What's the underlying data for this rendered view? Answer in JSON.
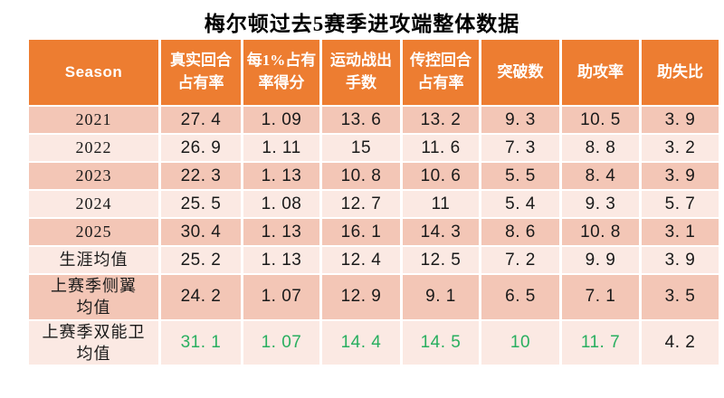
{
  "title": "梅尔顿过去5赛季进攻端整体数据",
  "colors": {
    "header_bg": "#ED7D31",
    "header_text": "#FFFFFF",
    "row_dark": "#F3C6B6",
    "row_light": "#FBE9E3",
    "text": "#1A1A1A",
    "highlight_green": "#28AF5F",
    "title_text": "#000000"
  },
  "table": {
    "headers": [
      "Season",
      "真实回合\n占有率",
      "每1%占有\n率得分",
      "运动战出\n手数",
      "传控回合\n占有率",
      "突破数",
      "助攻率",
      "助失比"
    ],
    "rows": [
      {
        "label": "2021",
        "values": [
          "27.4",
          "1.09",
          "13.6",
          "13.2",
          "9.3",
          "10.5",
          "3.9"
        ]
      },
      {
        "label": "2022",
        "values": [
          "26.9",
          "1.11",
          "15",
          "11.6",
          "7.3",
          "8.8",
          "3.2"
        ]
      },
      {
        "label": "2023",
        "values": [
          "22.3",
          "1.13",
          "10.8",
          "10.6",
          "5.5",
          "8.4",
          "3.9"
        ]
      },
      {
        "label": "2024",
        "values": [
          "25.5",
          "1.08",
          "12.7",
          "11",
          "5.4",
          "9.3",
          "5.7"
        ]
      },
      {
        "label": "2025",
        "values": [
          "30.4",
          "1.13",
          "16.1",
          "14.3",
          "8.6",
          "10.8",
          "3.1"
        ]
      },
      {
        "label": "生涯均值",
        "values": [
          "25.2",
          "1.13",
          "12.4",
          "12.5",
          "7.2",
          "9.9",
          "3.9"
        ]
      },
      {
        "label": "上赛季侧翼\n均值",
        "values": [
          "24.2",
          "1.07",
          "12.9",
          "9.1",
          "6.5",
          "7.1",
          "3.5"
        ]
      },
      {
        "label": "上赛季双能卫\n均值",
        "values": [
          "31.1",
          "1.07",
          "14.4",
          "14.5",
          "10",
          "11.7",
          "4.2"
        ],
        "green_cols": [
          0,
          1,
          2,
          3,
          4,
          5
        ]
      }
    ]
  },
  "chart_data": {
    "type": "table",
    "title": "梅尔顿过去5赛季进攻端整体数据",
    "columns": [
      "Season",
      "真实回合占有率",
      "每1%占有率得分",
      "运动战出手数",
      "传控回合占有率",
      "突破数",
      "助攻率",
      "助失比"
    ],
    "rows": [
      [
        "2021",
        27.4,
        1.09,
        13.6,
        13.2,
        9.3,
        10.5,
        3.9
      ],
      [
        "2022",
        26.9,
        1.11,
        15,
        11.6,
        7.3,
        8.8,
        3.2
      ],
      [
        "2023",
        22.3,
        1.13,
        10.8,
        10.6,
        5.5,
        8.4,
        3.9
      ],
      [
        "2024",
        25.5,
        1.08,
        12.7,
        11,
        5.4,
        9.3,
        5.7
      ],
      [
        "2025",
        30.4,
        1.13,
        16.1,
        14.3,
        8.6,
        10.8,
        3.1
      ],
      [
        "生涯均值",
        25.2,
        1.13,
        12.4,
        12.5,
        7.2,
        9.9,
        3.9
      ],
      [
        "上赛季侧翼均值",
        24.2,
        1.07,
        12.9,
        9.1,
        6.5,
        7.1,
        3.5
      ],
      [
        "上赛季双能卫均值",
        31.1,
        1.07,
        14.4,
        14.5,
        10,
        11.7,
        4.2
      ]
    ],
    "highlighted_green": {
      "row": "上赛季双能卫均值",
      "columns": [
        "真实回合占有率",
        "每1%占有率得分",
        "运动战出手数",
        "传控回合占有率",
        "突破数",
        "助攻率"
      ]
    },
    "layout": {
      "header_fill": "#ED7D31",
      "banded_rows": true,
      "grid": "white-separators"
    }
  }
}
